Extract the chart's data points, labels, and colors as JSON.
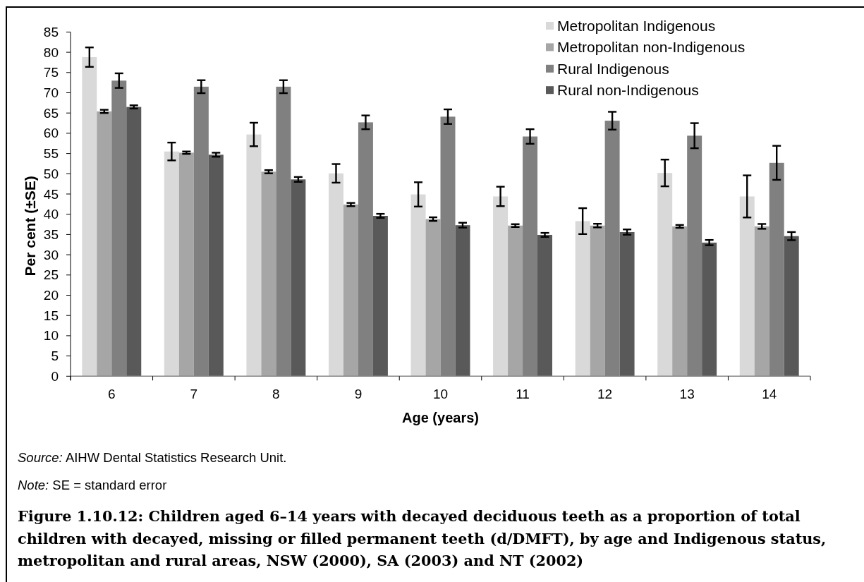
{
  "chart_data": {
    "type": "bar",
    "title": "Figure 1.10.12: Children aged 6–14 years with decayed deciduous teeth as a proportion of total children with decayed, missing or filled permanent teeth (d/DMFT), by age and Indigenous status, metropolitan and rural areas, NSW (2000), SA (2003) and NT (2002)",
    "xlabel": "Age (years)",
    "ylabel": "Per cent (±SE)",
    "categories": [
      "6",
      "7",
      "8",
      "9",
      "10",
      "11",
      "12",
      "13",
      "14"
    ],
    "series": [
      {
        "name": "Metropolitan Indigenous",
        "color": "#d9d9d9",
        "values": [
          78.8,
          55.5,
          59.7,
          50.1,
          44.9,
          44.4,
          38.3,
          50.2,
          44.4
        ],
        "errors": [
          2.4,
          2.2,
          2.9,
          2.3,
          3.0,
          2.4,
          3.2,
          3.3,
          5.2
        ]
      },
      {
        "name": "Metropolitan non-Indigenous",
        "color": "#a6a6a6",
        "values": [
          65.4,
          55.2,
          50.5,
          42.4,
          38.8,
          37.2,
          37.2,
          37.0,
          37.0
        ],
        "errors": [
          0.4,
          0.3,
          0.4,
          0.4,
          0.45,
          0.35,
          0.45,
          0.35,
          0.6
        ]
      },
      {
        "name": "Rural Indigenous",
        "color": "#808080",
        "values": [
          73.0,
          71.5,
          71.5,
          62.7,
          64.1,
          59.2,
          63.1,
          59.4,
          52.7
        ],
        "errors": [
          1.8,
          1.6,
          1.6,
          1.7,
          1.8,
          1.8,
          2.2,
          3.1,
          4.2
        ]
      },
      {
        "name": "Rural non-Indigenous",
        "color": "#595959",
        "values": [
          66.5,
          54.7,
          48.6,
          39.6,
          37.3,
          34.9,
          35.6,
          33.0,
          34.6
        ],
        "errors": [
          0.4,
          0.5,
          0.6,
          0.5,
          0.6,
          0.5,
          0.65,
          0.65,
          1.0
        ]
      }
    ],
    "ylim": [
      0,
      85
    ],
    "yticks": [
      0,
      5,
      10,
      15,
      20,
      25,
      30,
      35,
      40,
      45,
      50,
      55,
      60,
      65,
      70,
      75,
      80,
      85
    ],
    "legend": "top right",
    "annotations": [
      "Source: AIHW Dental Statistics Research Unit.",
      "Note: SE = standard error"
    ]
  }
}
